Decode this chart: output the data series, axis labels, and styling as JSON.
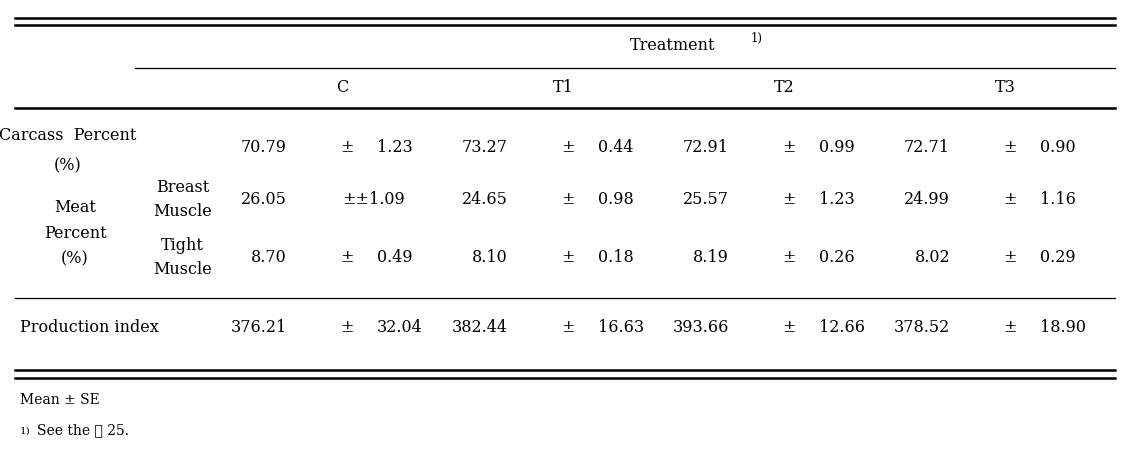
{
  "col_headers": [
    "C",
    "T1",
    "T2",
    "T3"
  ],
  "rows": [
    {
      "left_label": [
        "Carcass  Percent",
        "(%)",
        "",
        "",
        ""
      ],
      "right_label": [
        "",
        "",
        "",
        "",
        ""
      ],
      "values": [
        [
          "70.79",
          "±",
          "1.23"
        ],
        [
          "73.27",
          "±",
          "0.44"
        ],
        [
          "72.91",
          "±",
          "0.99"
        ],
        [
          "72.71",
          "±",
          "0.90"
        ]
      ]
    },
    {
      "left_label": [
        "Meat",
        "Percent",
        "(%)",
        "",
        ""
      ],
      "right_label": [
        "Breast",
        "Muscle",
        "",
        "",
        ""
      ],
      "values": [
        [
          "26.05",
          "±±1.09",
          ""
        ],
        [
          "24.65",
          "±",
          "0.98"
        ],
        [
          "25.57",
          "±",
          "1.23"
        ],
        [
          "24.99",
          "±",
          "1.16"
        ]
      ]
    },
    {
      "left_label": [
        "",
        "",
        "",
        "",
        ""
      ],
      "right_label": [
        "Tight",
        "Muscle",
        "",
        "",
        ""
      ],
      "values": [
        [
          "8.70",
          "±",
          "0.49"
        ],
        [
          "8.10",
          "±",
          "0.18"
        ],
        [
          "8.19",
          "±",
          "0.26"
        ],
        [
          "8.02",
          "±",
          "0.29"
        ]
      ]
    },
    {
      "left_label": [
        "Production index",
        "",
        "",
        "",
        ""
      ],
      "right_label": [
        "",
        "",
        "",
        "",
        ""
      ],
      "values": [
        [
          "376.21",
          "±",
          "32.04"
        ],
        [
          "382.44",
          "±",
          "16.63"
        ],
        [
          "393.66",
          "±",
          "12.66"
        ],
        [
          "378.52",
          "±",
          "18.90"
        ]
      ]
    }
  ],
  "footnote1": "Mean ± SE",
  "footnote2": "See the 表 25.",
  "font_size": 11.5,
  "bg_color": "#ffffff",
  "text_color": "#000000",
  "line_color": "#000000"
}
